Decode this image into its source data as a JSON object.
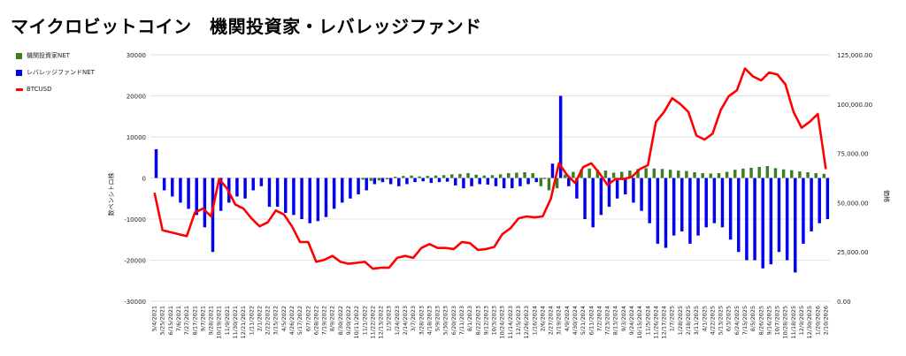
{
  "title": "マイクロビットコイン　機関投資家・レバレッジファンド",
  "legend": [
    {
      "label": "機関投資家NET",
      "color": "#3a7d22",
      "kind": "box"
    },
    {
      "label": "レバレッジファンドNET",
      "color": "#0000ee",
      "kind": "box"
    },
    {
      "label": "BTCUSD",
      "color": "#ff0000",
      "kind": "line"
    }
  ],
  "chart_data": {
    "type": "bar",
    "title": "マイクロビットコイン　機関投資家・レバレッジファンド",
    "ylabel_left": "数ペンシトロ株",
    "ylabel_right": "価格",
    "y_left_range": [
      -30000,
      30000
    ],
    "y_left_ticks": [
      "30000",
      "20000",
      "10000",
      "0",
      "-10000",
      "-20000",
      "-30000"
    ],
    "y_right_range": [
      0,
      125000
    ],
    "y_right_ticks": [
      "125,000.00",
      "100,000.00",
      "75,000.00",
      "50,000.00",
      "25,000.00",
      "0.00"
    ],
    "x_tick_labels": [
      "5/4/2021",
      "5/25/2021",
      "6/15/2021",
      "7/6/2021",
      "7/27/2021",
      "8/17/2021",
      "9/7/2021",
      "9/28/2021",
      "10/19/2021",
      "11/9/2021",
      "11/30/2021",
      "12/21/2021",
      "1/11/2022",
      "2/1/2022",
      "2/22/2022",
      "3/15/2022",
      "4/5/2022",
      "4/26/2022",
      "5/17/2022",
      "6/7/2022",
      "6/28/2022",
      "7/19/2022",
      "8/9/2022",
      "8/30/2022",
      "9/20/2022",
      "10/11/2022",
      "11/1/2022",
      "11/22/2022",
      "12/13/2022",
      "1/3/2023",
      "1/24/2023",
      "2/14/2023",
      "3/7/2023",
      "3/28/2023",
      "4/18/2023",
      "5/9/2023",
      "5/30/2023",
      "6/20/2023",
      "7/11/2023",
      "8/1/2023",
      "8/22/2023",
      "9/12/2023",
      "10/3/2023",
      "10/24/2023",
      "11/14/2023",
      "12/5/2023",
      "12/26/2023",
      "1/16/2024",
      "2/6/2024",
      "2/27/2024",
      "3/19/2024",
      "4/9/2024",
      "4/30/2024",
      "5/21/2024",
      "6/11/2024",
      "7/2/2024",
      "7/23/2024",
      "8/13/2024",
      "9/3/2024",
      "9/24/2024",
      "10/15/2024",
      "11/5/2024",
      "11/26/2024",
      "12/17/2024",
      "1/7/2025",
      "1/28/2025",
      "2/18/2025",
      "3/11/2025",
      "4/1/2025",
      "4/22/2025",
      "5/13/2025",
      "6/3/2025",
      "6/24/2025",
      "7/15/2025",
      "8/5/2025",
      "8/26/2025",
      "9/16/2025",
      "10/7/2025",
      "10/28/2025",
      "11/18/2025",
      "12/9/2025",
      "12/30/2025",
      "1/20/2026",
      "2/10/2026"
    ],
    "grid": true,
    "legend_position": "top-left",
    "series": [
      {
        "name": "機関投資家NET",
        "type": "bar",
        "axis": "left",
        "color": "#3a7d22",
        "values": [
          0,
          0,
          0,
          0,
          0,
          0,
          0,
          0,
          0,
          0,
          0,
          0,
          0,
          0,
          0,
          0,
          0,
          0,
          0,
          0,
          0,
          0,
          0,
          0,
          0,
          0,
          -400,
          -700,
          -600,
          -300,
          300,
          500,
          600,
          400,
          500,
          600,
          700,
          900,
          1000,
          1200,
          800,
          600,
          700,
          900,
          1200,
          1300,
          1400,
          1200,
          -2000,
          -3000,
          -2500,
          800,
          1500,
          2000,
          2300,
          2000,
          1800,
          1300,
          1500,
          1800,
          2200,
          2400,
          2300,
          2200,
          2000,
          1800,
          1700,
          1400,
          1200,
          1100,
          1200,
          1500,
          2000,
          2300,
          2500,
          2700,
          2900,
          2400,
          2100,
          1900,
          1600,
          1400,
          1200,
          1000
        ]
      },
      {
        "name": "レバレッジファンドNET",
        "type": "bar",
        "axis": "left",
        "color": "#0000ee",
        "values": [
          7000,
          -3000,
          -4500,
          -6000,
          -7500,
          -9000,
          -12000,
          -18000,
          -8000,
          -6000,
          -4500,
          -5000,
          -3000,
          -2000,
          -7000,
          -7000,
          -8500,
          -9000,
          -10000,
          -11000,
          -10500,
          -9500,
          -7500,
          -6000,
          -5000,
          -4000,
          -3000,
          -1500,
          -1000,
          -1500,
          -2000,
          -1500,
          -1000,
          -800,
          -1200,
          -1000,
          -900,
          -1800,
          -2500,
          -2000,
          -1500,
          -1600,
          -2000,
          -2500,
          -2500,
          -2000,
          -1500,
          -1000,
          -200,
          3500,
          20000,
          -2000,
          -5000,
          -10000,
          -12000,
          -9000,
          -7000,
          -5000,
          -4000,
          -6000,
          -8000,
          -11000,
          -16000,
          -17000,
          -14000,
          -13000,
          -16000,
          -14000,
          -12000,
          -11000,
          -12000,
          -15000,
          -18000,
          -20000,
          -20000,
          -22000,
          -21000,
          -18000,
          -20000,
          -23000,
          -16000,
          -13000,
          -11000,
          -10000
        ]
      },
      {
        "name": "BTCUSD",
        "type": "line",
        "axis": "right",
        "color": "#ff0000",
        "values": [
          55000,
          36000,
          35000,
          34000,
          33000,
          45000,
          47000,
          43000,
          62000,
          57000,
          49000,
          47000,
          42000,
          38000,
          40000,
          46000,
          44000,
          38000,
          30000,
          30000,
          20000,
          21000,
          23000,
          20000,
          19000,
          19500,
          20000,
          16500,
          17000,
          17000,
          22000,
          23000,
          22000,
          27000,
          29000,
          27000,
          27000,
          26500,
          30000,
          29500,
          26000,
          26500,
          27500,
          34000,
          37000,
          42000,
          43000,
          42500,
          43000,
          52000,
          70000,
          64000,
          60000,
          68000,
          70000,
          65000,
          59000,
          62000,
          62000,
          63000,
          67000,
          69000,
          91000,
          96000,
          103000,
          100000,
          96000,
          84000,
          82000,
          85000,
          97000,
          104000,
          107000,
          118000,
          114000,
          112000,
          116000,
          115000,
          110000,
          96000,
          88000,
          91000,
          95000,
          67000
        ]
      }
    ]
  }
}
